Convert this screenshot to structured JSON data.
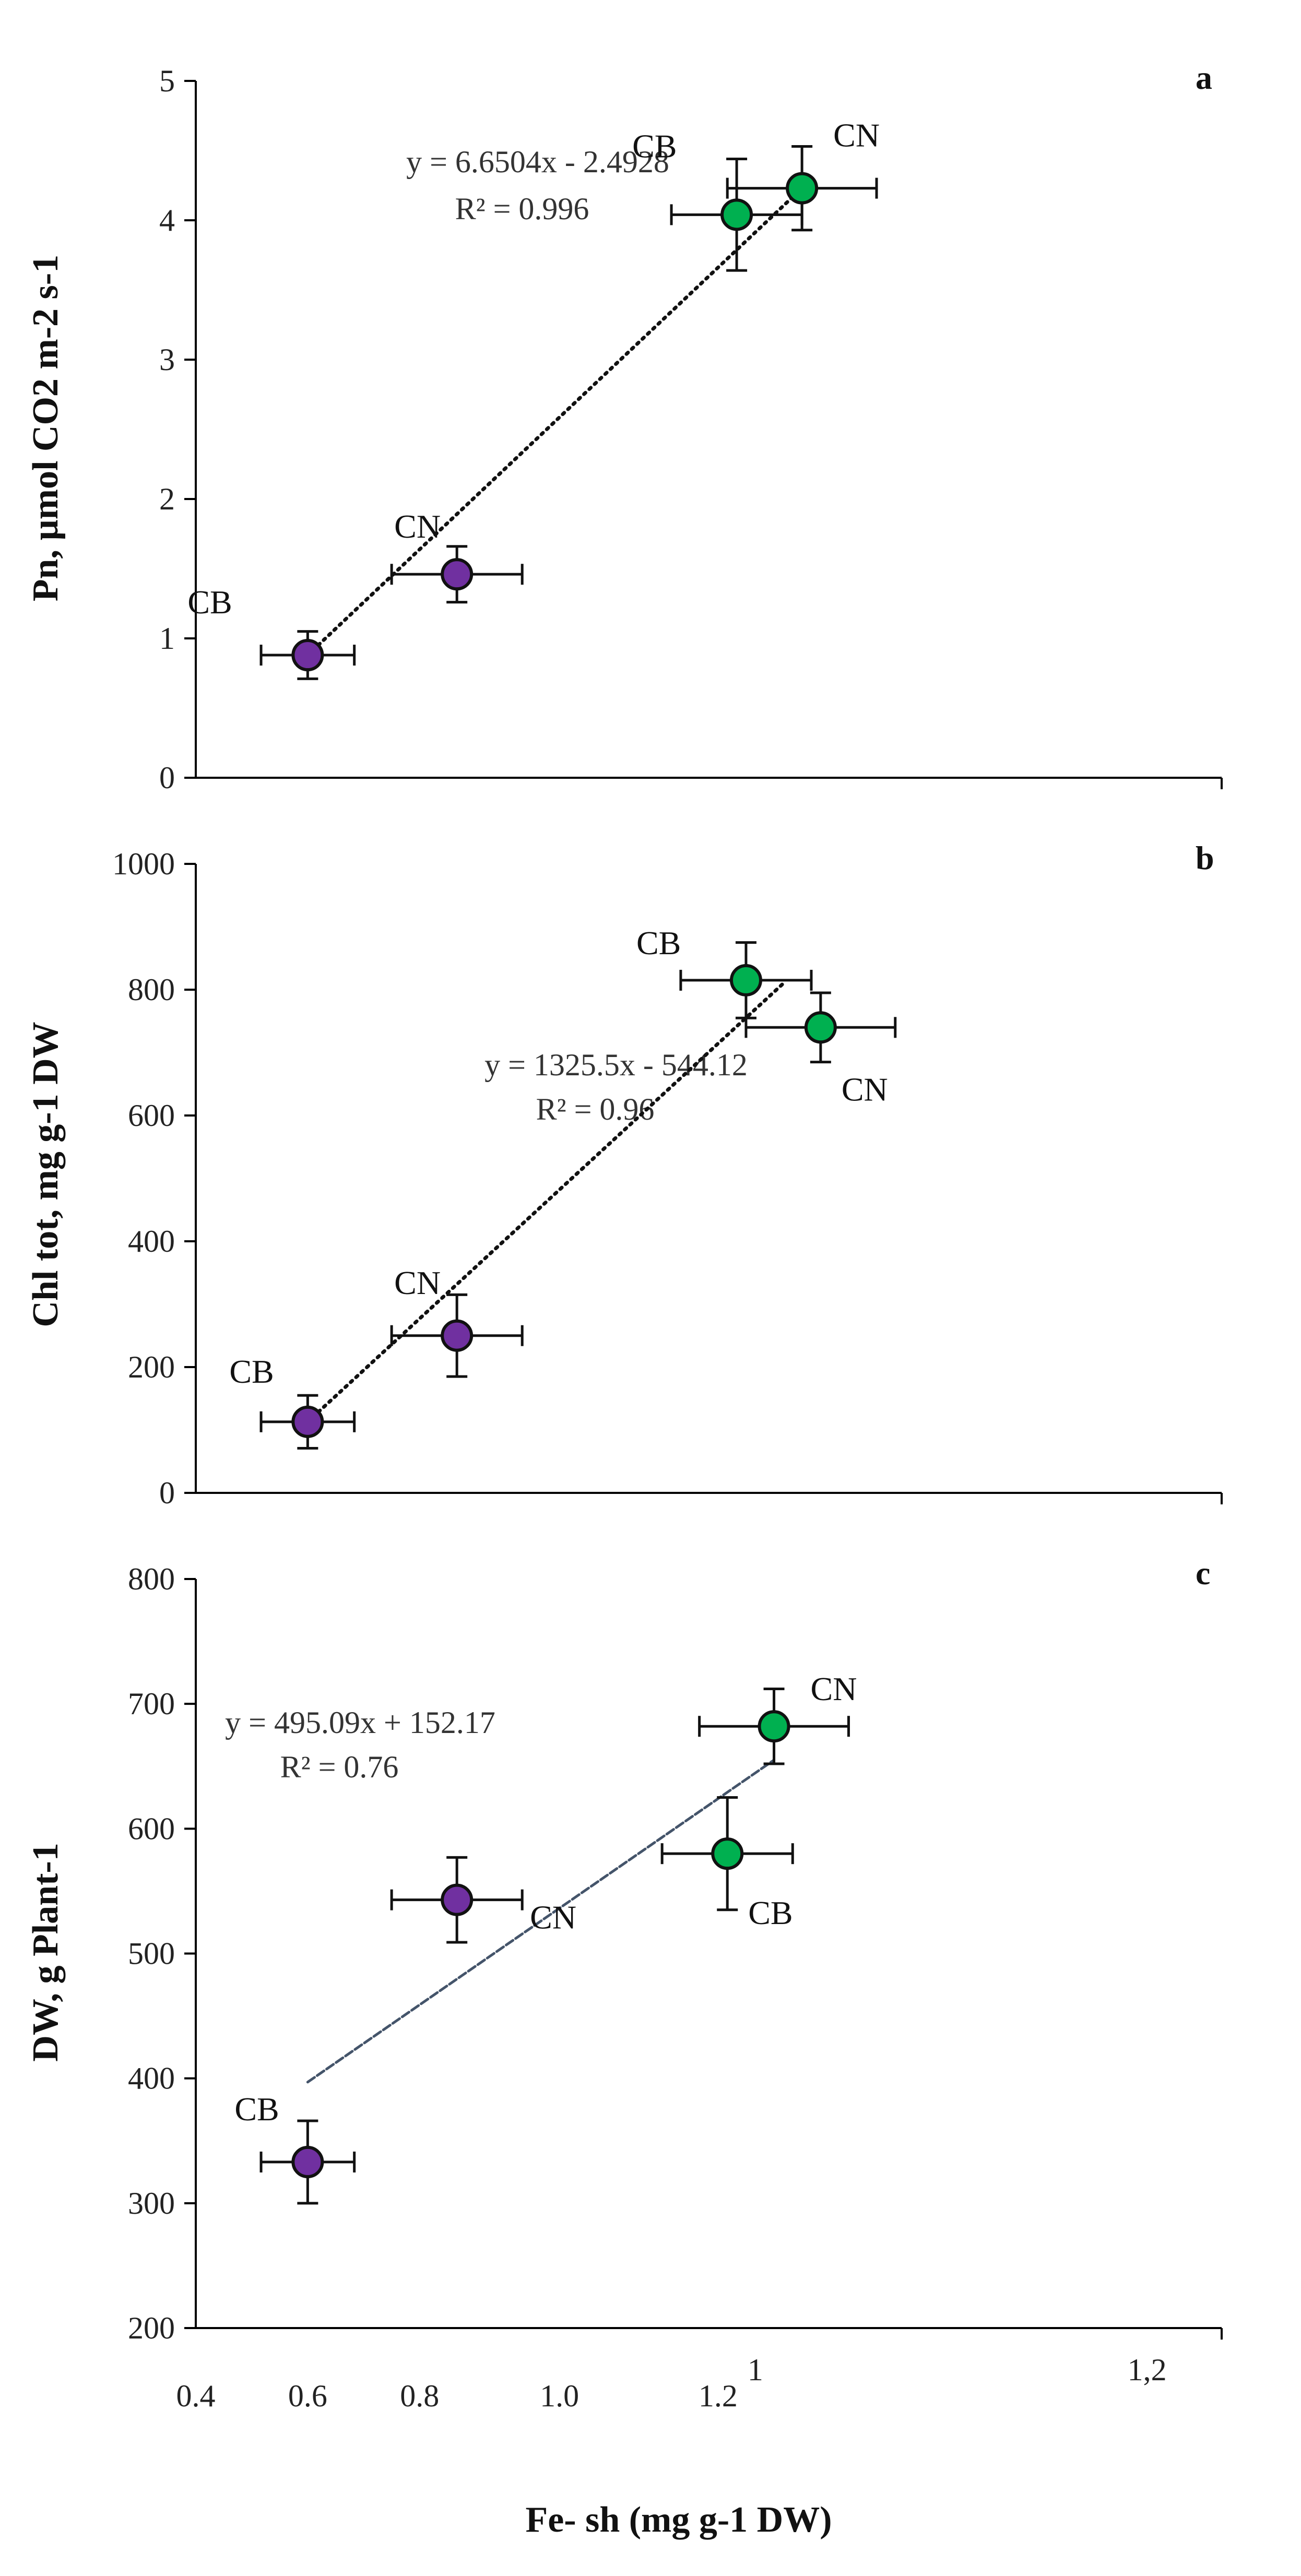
{
  "chart_data": [
    {
      "type": "scatter",
      "panel": "a",
      "ylabel": "Pn, µmol CO2 m-2 s-1",
      "ylim": [
        0,
        5
      ],
      "yticks": [
        "0",
        "1",
        "2",
        "3",
        "4",
        "5"
      ],
      "xlim": [
        0.4,
        1.5
      ],
      "equation": "y = 6.6504x - 2.4928",
      "r2": "R² = 0.996",
      "trendline": {
        "style": "dotted",
        "x0": 0.52,
        "x1": 1.05
      },
      "points": [
        {
          "label": "CB",
          "x": 0.52,
          "y": 0.88,
          "xerr": 0.05,
          "yerr": 0.17,
          "group": "purple"
        },
        {
          "label": "CN",
          "x": 0.68,
          "y": 1.46,
          "xerr": 0.07,
          "yerr": 0.2,
          "group": "purple"
        },
        {
          "label": "CB",
          "x": 0.98,
          "y": 4.04,
          "xerr": 0.07,
          "yerr": 0.4,
          "group": "green"
        },
        {
          "label": "CN",
          "x": 1.05,
          "y": 4.23,
          "xerr": 0.08,
          "yerr": 0.3,
          "group": "green"
        }
      ]
    },
    {
      "type": "scatter",
      "panel": "b",
      "ylabel": "Chl tot, mg g-1 DW",
      "ylim": [
        0,
        1000
      ],
      "yticks": [
        "0",
        "200",
        "400",
        "600",
        "800",
        "1000"
      ],
      "xlim": [
        0.4,
        1.5
      ],
      "equation": "y = 1325.5x - 544.12",
      "r2": "R² = 0.96",
      "trendline": {
        "style": "dotted",
        "x0": 0.52,
        "x1": 1.03
      },
      "points": [
        {
          "label": "CB",
          "x": 0.52,
          "y": 113,
          "xerr": 0.05,
          "yerr": 42,
          "group": "purple"
        },
        {
          "label": "CN",
          "x": 0.68,
          "y": 250,
          "xerr": 0.07,
          "yerr": 65,
          "group": "purple"
        },
        {
          "label": "CB",
          "x": 0.99,
          "y": 815,
          "xerr": 0.07,
          "yerr": 60,
          "group": "green"
        },
        {
          "label": "CN",
          "x": 1.07,
          "y": 740,
          "xerr": 0.08,
          "yerr": 55,
          "group": "green"
        }
      ]
    },
    {
      "type": "scatter",
      "panel": "c",
      "ylabel": "DW, g Plant-1",
      "ylim": [
        200,
        800
      ],
      "yticks": [
        "200",
        "300",
        "400",
        "500",
        "600",
        "700",
        "800"
      ],
      "xlim": [
        0.4,
        1.5
      ],
      "equation": "y = 495.09x + 152.17",
      "r2": "R² = 0.76",
      "trendline": {
        "style": "dashed",
        "x0": 0.52,
        "x1": 1.02
      },
      "points": [
        {
          "label": "CB",
          "x": 0.52,
          "y": 333,
          "xerr": 0.05,
          "yerr": 33,
          "group": "purple"
        },
        {
          "label": "CN",
          "x": 0.68,
          "y": 543,
          "xerr": 0.07,
          "yerr": 34,
          "group": "purple"
        },
        {
          "label": "CB",
          "x": 0.97,
          "y": 580,
          "xerr": 0.07,
          "yerr": 45,
          "group": "green"
        },
        {
          "label": "CN",
          "x": 1.02,
          "y": 682,
          "xerr": 0.08,
          "yerr": 30,
          "group": "green"
        }
      ],
      "xticks": [
        {
          "label": "0.4",
          "x": 0.4
        },
        {
          "label": "0.6",
          "x": 0.52
        },
        {
          "label": "0.8",
          "x": 0.64
        },
        {
          "label": "1.0",
          "x": 0.79
        },
        {
          "label": "1.2",
          "x": 0.96
        },
        {
          "label": "1",
          "x": 1.0
        },
        {
          "label": "1,2",
          "x": 1.42
        }
      ],
      "xlabel": "Fe- sh (mg g-1 DW)"
    }
  ],
  "colors": {
    "purple": "#7030a0",
    "green": "#00b050",
    "axis": "#000000",
    "trend_c": "#44546a"
  }
}
